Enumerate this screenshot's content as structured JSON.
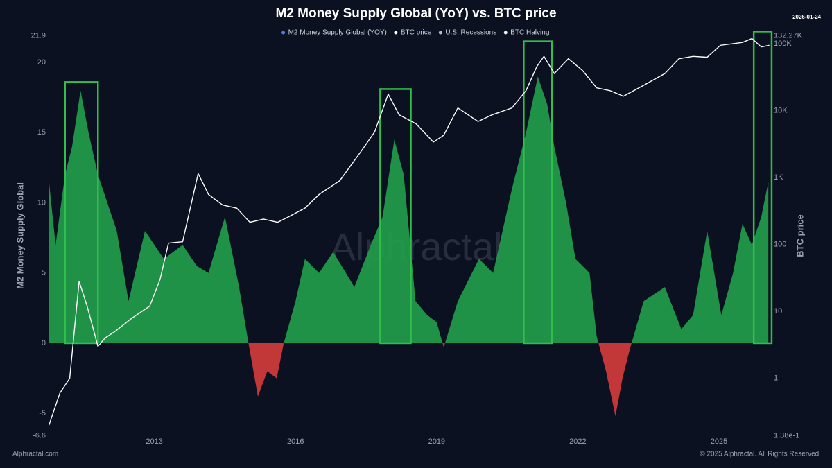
{
  "chart_data": {
    "type": "area-line",
    "title": "M2 Money Supply Global (YoY) vs. BTC price",
    "date": "2026-01-24",
    "ylabel": "M2 Money Supply Global",
    "y2label": "BTC price",
    "watermark": "Alphractal",
    "source": "Alphractal.com",
    "copyright": "© 2025 Alphractal. All Rights Reserved.",
    "xlim": [
      2010.75,
      2026.15
    ],
    "xticks": [
      2013,
      2016,
      2019,
      2022,
      2025
    ],
    "ylim": [
      -6.6,
      21.9
    ],
    "yticks": [
      -6.6,
      -5,
      0,
      5,
      10,
      15,
      20,
      21.9
    ],
    "y2lim": [
      0.138,
      132270
    ],
    "y2scale": "log",
    "y2ticks": [
      {
        "value": 0.138,
        "label": "1.38e-1"
      },
      1,
      10,
      100,
      {
        "value": 1000,
        "label": "1K"
      },
      {
        "value": 10000,
        "label": "10K"
      },
      {
        "value": 100000,
        "label": "100K"
      },
      {
        "value": 132270,
        "label": "132.27K"
      }
    ],
    "series": [
      {
        "name": "M2 Money Supply Global (YOY)",
        "color": "#4f7fe0",
        "positive_color": "#22a04b",
        "negative_color": "#d63c3c",
        "x": [
          2010.76,
          2010.9,
          2011.1,
          2011.25,
          2011.43,
          2011.6,
          2011.8,
          2012.0,
          2012.2,
          2012.45,
          2012.8,
          2013.2,
          2013.6,
          2013.9,
          2014.15,
          2014.5,
          2014.8,
          2015.0,
          2015.2,
          2015.4,
          2015.6,
          2015.75,
          2016.0,
          2016.2,
          2016.5,
          2016.8,
          2017.25,
          2017.6,
          2017.85,
          2018.1,
          2018.3,
          2018.55,
          2018.8,
          2019.0,
          2019.15,
          2019.45,
          2019.9,
          2020.2,
          2020.6,
          2020.9,
          2021.15,
          2021.35,
          2021.5,
          2021.75,
          2021.95,
          2022.25,
          2022.4,
          2022.6,
          2022.8,
          2022.95,
          2023.1,
          2023.4,
          2023.85,
          2024.2,
          2024.45,
          2024.75,
          2025.05,
          2025.3,
          2025.5,
          2025.7,
          2025.9,
          2026.05
        ],
        "values": [
          11.5,
          7,
          12,
          14,
          18,
          15,
          12,
          10,
          8,
          3,
          8,
          6,
          7,
          5.5,
          5,
          9,
          4,
          0,
          -3.8,
          -2,
          -2.5,
          0,
          3,
          6,
          5,
          6.5,
          4,
          7,
          9,
          14.5,
          12,
          3,
          2,
          1.5,
          -0.3,
          3,
          6,
          5,
          11,
          15,
          19,
          17,
          14,
          10,
          6,
          5,
          0.5,
          -2,
          -5.2,
          -2.5,
          -0.5,
          3,
          4,
          1,
          2,
          8,
          2,
          5,
          8.5,
          7,
          9,
          11.5
        ]
      },
      {
        "name": "BTC price",
        "color": "#ffffff",
        "x": [
          2010.76,
          2010.99,
          2011.2,
          2011.4,
          2011.57,
          2011.8,
          2011.95,
          2012.16,
          2012.53,
          2012.9,
          2013.12,
          2013.3,
          2013.6,
          2013.93,
          2014.15,
          2014.45,
          2014.75,
          2015.03,
          2015.32,
          2015.62,
          2015.9,
          2016.2,
          2016.5,
          2016.94,
          2017.38,
          2017.68,
          2017.97,
          2018.2,
          2018.56,
          2018.93,
          2019.15,
          2019.45,
          2019.88,
          2020.18,
          2020.6,
          2020.9,
          2021.13,
          2021.28,
          2021.5,
          2021.8,
          2022.1,
          2022.4,
          2022.68,
          2022.97,
          2023.4,
          2023.85,
          2024.15,
          2024.45,
          2024.75,
          2025.03,
          2025.5,
          2025.7,
          2025.9,
          2026.07
        ],
        "values": [
          0.2,
          0.6,
          1,
          28,
          12,
          3,
          4,
          5,
          8,
          12,
          30,
          105,
          110,
          1150,
          560,
          390,
          350,
          215,
          240,
          215,
          270,
          350,
          560,
          900,
          2400,
          4800,
          17700,
          8700,
          6400,
          3400,
          4300,
          11000,
          6900,
          8700,
          11000,
          20000,
          46000,
          65000,
          36000,
          60000,
          40000,
          22000,
          20000,
          16500,
          24000,
          36000,
          60000,
          65000,
          63000,
          95000,
          105000,
          120000,
          90000,
          95000
        ],
        "axis": "y2"
      },
      {
        "name": "U.S. Recessions",
        "color": "#bbbbbb",
        "values": []
      },
      {
        "name": "BTC Halving",
        "color": "#eeeeee",
        "values": []
      }
    ],
    "highlights": {
      "color": "#2fbf4a",
      "x_ranges": [
        [
          2011.1,
          2011.8
        ],
        [
          2017.8,
          2018.45
        ],
        [
          2020.85,
          2021.45
        ],
        [
          2025.74,
          2026.12
        ]
      ],
      "tops": [
        18.6,
        18.1,
        21.5,
        22.2
      ]
    }
  }
}
